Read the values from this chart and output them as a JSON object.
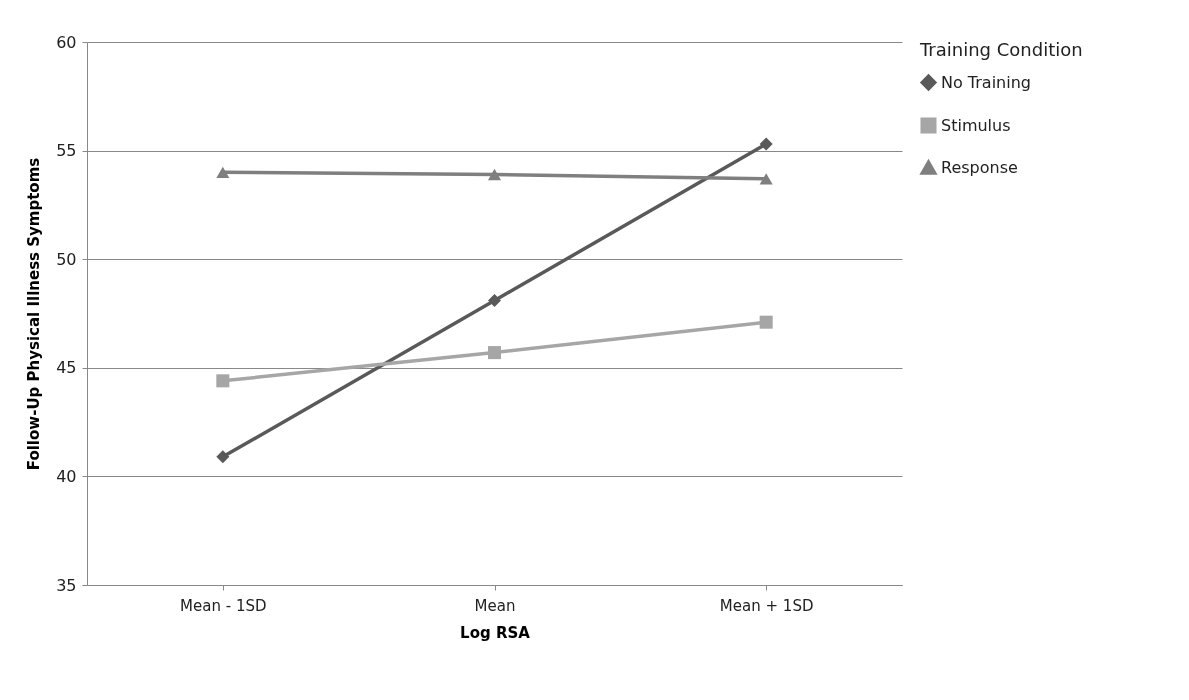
{
  "chart_data": {
    "type": "line",
    "xlabel": "Log RSA",
    "ylabel": "Follow-Up Physical Illness Symptoms",
    "legend_title": "Training Condition",
    "categories": [
      "Mean - 1SD",
      "Mean",
      "Mean + 1SD"
    ],
    "series": [
      {
        "name": "No Training",
        "color": "#595959",
        "marker": "diamond",
        "values": [
          40.9,
          48.1,
          55.3
        ]
      },
      {
        "name": "Stimulus",
        "color": "#a6a6a6",
        "marker": "square",
        "values": [
          44.4,
          45.7,
          47.1
        ]
      },
      {
        "name": "Response",
        "color": "#7f7f7f",
        "marker": "triangle",
        "values": [
          54.0,
          53.9,
          53.7
        ]
      }
    ],
    "ylim": [
      35,
      60
    ],
    "yticks": [
      35,
      40,
      45,
      50,
      55,
      60
    ],
    "grid": "y",
    "legend": "right",
    "line_style": "solid"
  }
}
